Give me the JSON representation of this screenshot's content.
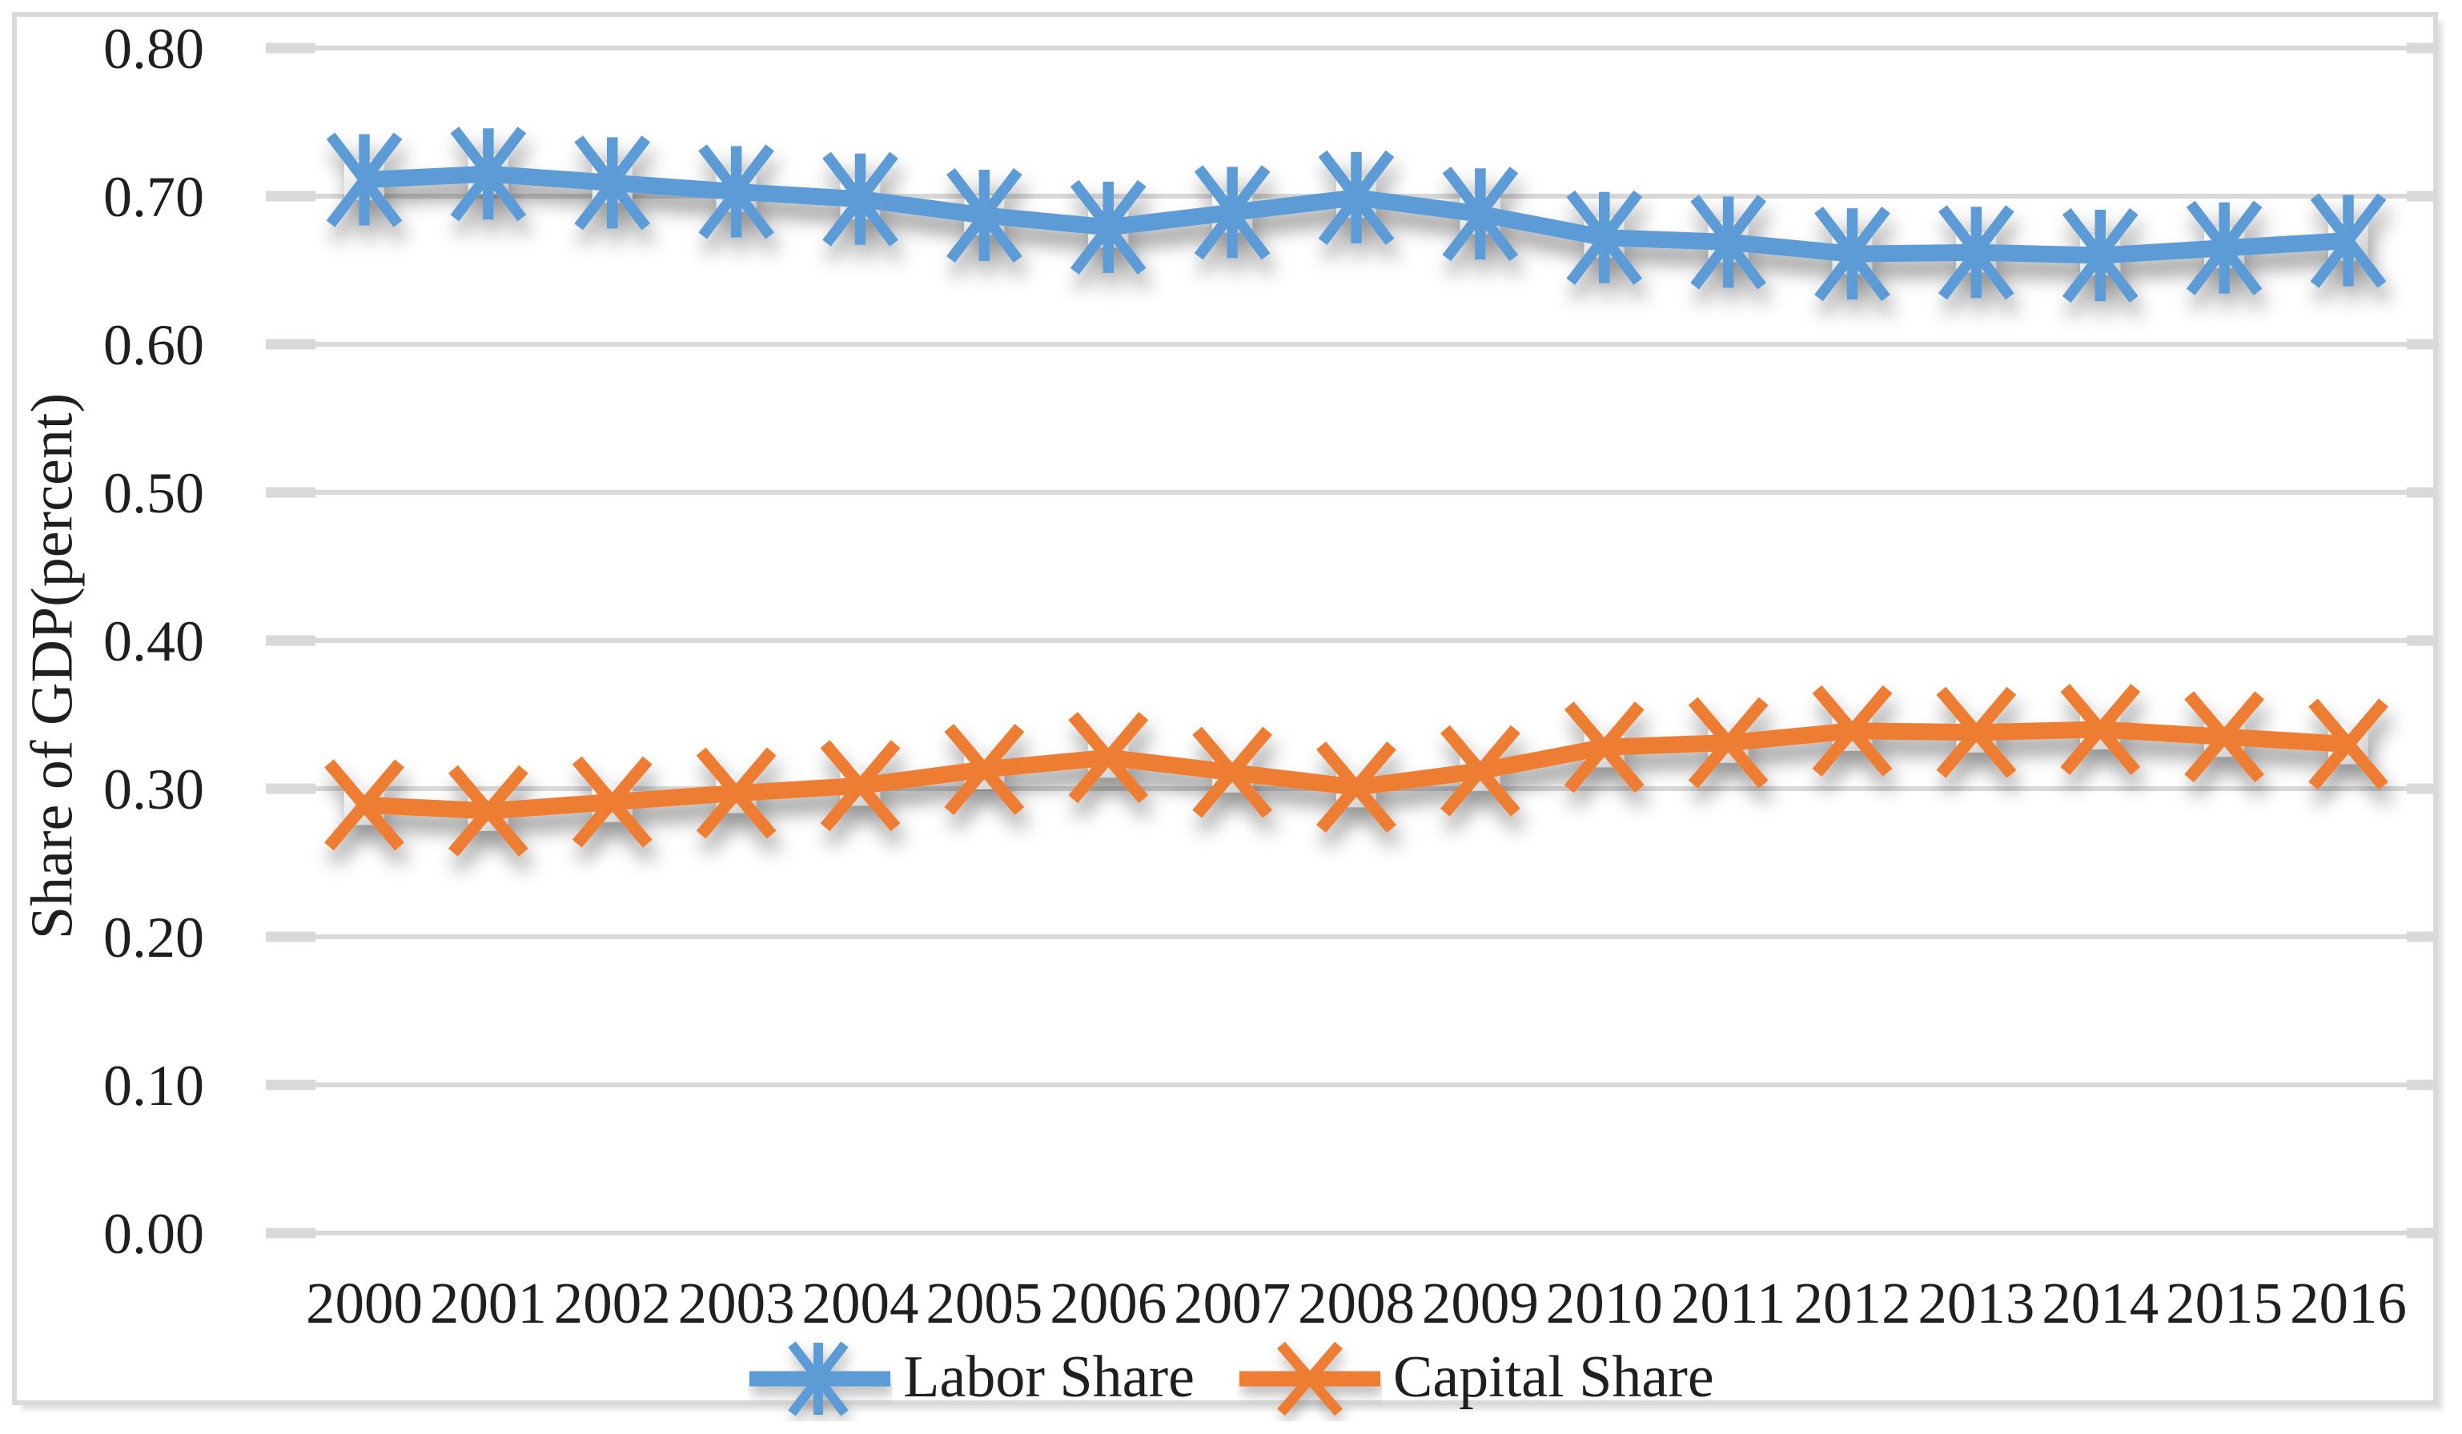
{
  "figure": {
    "background": "#FFFFFF",
    "frame_color": "#D9D9D9",
    "grid_color": "#D9D9D9",
    "text_color": "#1f1f1f"
  },
  "y_axis": {
    "title": "Share of GDP(percent)",
    "tick_labels": [
      "0.80",
      "0.70",
      "0.60",
      "0.50",
      "0.40",
      "0.30",
      "0.20",
      "0.10",
      "0.00"
    ]
  },
  "x_axis": {
    "tick_labels": [
      "2000",
      "2001",
      "2002",
      "2003",
      "2004",
      "2005",
      "2006",
      "2007",
      "2008",
      "2009",
      "2010",
      "2011",
      "2012",
      "2013",
      "2014",
      "2015",
      "2016"
    ]
  },
  "legend": {
    "items": [
      {
        "label": "Labor Share",
        "color": "#5B9BD5",
        "marker": "star6"
      },
      {
        "label": "Capital Share",
        "color": "#ED7D31",
        "marker": "x4"
      }
    ]
  },
  "chart_data": {
    "type": "line",
    "title": "",
    "x": [
      2000,
      2001,
      2002,
      2003,
      2004,
      2005,
      2006,
      2007,
      2008,
      2009,
      2010,
      2011,
      2012,
      2013,
      2014,
      2015,
      2016
    ],
    "series": [
      {
        "name": "Labor Share",
        "color": "#5B9BD5",
        "marker": "star6",
        "values": [
          0.711,
          0.715,
          0.709,
          0.703,
          0.698,
          0.687,
          0.679,
          0.689,
          0.699,
          0.688,
          0.672,
          0.669,
          0.661,
          0.662,
          0.66,
          0.665,
          0.67
        ]
      },
      {
        "name": "Capital Share",
        "color": "#ED7D31",
        "marker": "x4",
        "values": [
          0.289,
          0.285,
          0.291,
          0.297,
          0.302,
          0.313,
          0.321,
          0.311,
          0.301,
          0.312,
          0.328,
          0.331,
          0.339,
          0.338,
          0.34,
          0.335,
          0.33
        ]
      }
    ],
    "xlabel": "",
    "ylabel": "Share of GDP(percent)",
    "ylim": [
      0.0,
      0.8
    ],
    "ytick_step": 0.1,
    "grid": "horizontal",
    "legend_position": "bottom",
    "marker_backdrop": "gray 3d square with drop shadow"
  }
}
